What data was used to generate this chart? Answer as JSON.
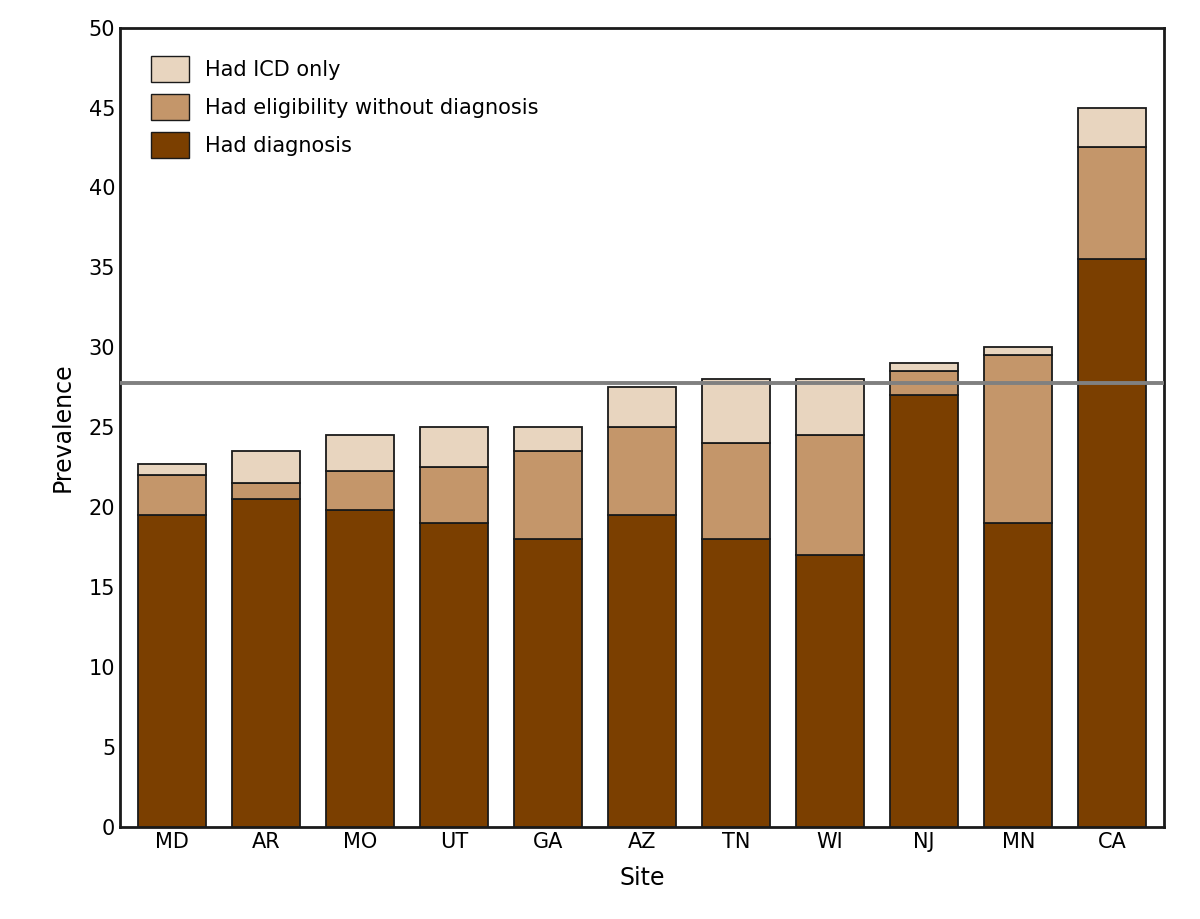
{
  "sites": [
    "MD",
    "AR",
    "MO",
    "UT",
    "GA",
    "AZ",
    "TN",
    "WI",
    "NJ",
    "MN",
    "CA"
  ],
  "diagnosis": [
    19.5,
    20.5,
    19.8,
    19.0,
    18.0,
    19.5,
    18.0,
    17.0,
    27.0,
    19.0,
    35.5
  ],
  "eligibility": [
    2.5,
    1.0,
    2.5,
    3.5,
    5.5,
    5.5,
    6.0,
    7.5,
    1.5,
    10.5,
    7.0
  ],
  "icd_only": [
    0.7,
    2.0,
    2.2,
    2.5,
    1.5,
    2.5,
    4.0,
    3.5,
    0.5,
    0.5,
    2.5
  ],
  "reference_line": 27.8,
  "color_diagnosis": "#7B3F00",
  "color_eligibility": "#C4966A",
  "color_icd": "#E8D5BF",
  "bar_edge_color": "#1a1a1a",
  "bar_linewidth": 1.3,
  "ylim": [
    0,
    50
  ],
  "yticks": [
    0,
    5,
    10,
    15,
    20,
    25,
    30,
    35,
    40,
    45,
    50
  ],
  "xlabel": "Site",
  "ylabel": "Prevalence",
  "legend_labels": [
    "Had ICD only",
    "Had eligibility without diagnosis",
    "Had diagnosis"
  ],
  "legend_colors": [
    "#E8D5BF",
    "#C4966A",
    "#7B3F00"
  ],
  "ref_line_color": "#808080",
  "ref_line_linewidth": 2.8,
  "background_color": "#ffffff",
  "label_fontsize": 17,
  "tick_fontsize": 15,
  "legend_fontsize": 15,
  "bar_width": 0.72
}
